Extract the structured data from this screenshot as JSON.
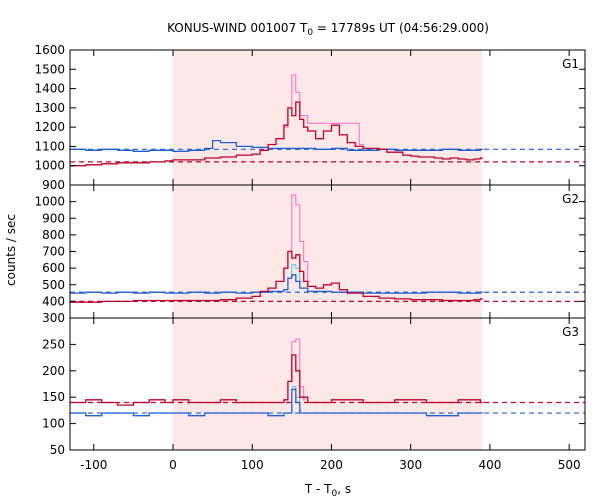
{
  "chart_data": {
    "type": "line",
    "title": "KONUS-WIND 001007 T",
    "title_sub": "0",
    "title_rest": " = 17789s UT (04:56:29.000)",
    "xlabel": "T - T",
    "xlabel_sub": "0",
    "xlabel_rest": ", s",
    "ylabel": "counts / sec",
    "xlim": [
      -130,
      520
    ],
    "xticks": [
      -100,
      0,
      100,
      200,
      300,
      400,
      500
    ],
    "xtick_labels": [
      "-100",
      "0",
      "100",
      "200",
      "300",
      "400",
      "500"
    ],
    "shaded_interval": [
      0,
      390
    ],
    "colors": {
      "shade": "#fde8e8",
      "red": "#c0002a",
      "blue": "#1f5fd6",
      "magenta": "#ff66cc",
      "cyan": "#33ccee"
    },
    "panels": [
      {
        "name": "G1",
        "ylim": [
          900,
          1600
        ],
        "yticks": [
          900,
          1000,
          1100,
          1200,
          1300,
          1400,
          1500,
          1600
        ],
        "ytick_labels": [
          "900",
          "1000",
          "1100",
          "1200",
          "1300",
          "1400",
          "1500",
          "1600"
        ],
        "red_background": 1020,
        "blue_background": 1085,
        "red": [
          [
            -130,
            1000
          ],
          [
            -110,
            1005
          ],
          [
            -90,
            1010
          ],
          [
            -70,
            1015
          ],
          [
            -50,
            1015
          ],
          [
            -30,
            1020
          ],
          [
            -10,
            1025
          ],
          [
            0,
            1030
          ],
          [
            20,
            1030
          ],
          [
            40,
            1040
          ],
          [
            60,
            1045
          ],
          [
            80,
            1055
          ],
          [
            100,
            1060
          ],
          [
            110,
            1080
          ],
          [
            120,
            1110
          ],
          [
            130,
            1140
          ],
          [
            140,
            1210
          ],
          [
            145,
            1300
          ],
          [
            150,
            1260
          ],
          [
            155,
            1330
          ],
          [
            160,
            1240
          ],
          [
            165,
            1200
          ],
          [
            170,
            1180
          ],
          [
            180,
            1140
          ],
          [
            190,
            1180
          ],
          [
            200,
            1210
          ],
          [
            210,
            1160
          ],
          [
            220,
            1120
          ],
          [
            230,
            1100
          ],
          [
            240,
            1090
          ],
          [
            250,
            1090
          ],
          [
            260,
            1085
          ],
          [
            270,
            1070
          ],
          [
            280,
            1070
          ],
          [
            290,
            1055
          ],
          [
            300,
            1050
          ],
          [
            310,
            1045
          ],
          [
            320,
            1045
          ],
          [
            330,
            1040
          ],
          [
            340,
            1035
          ],
          [
            350,
            1040
          ],
          [
            360,
            1035
          ],
          [
            370,
            1030
          ],
          [
            380,
            1035
          ],
          [
            388,
            1040
          ]
        ],
        "blue": [
          [
            -130,
            1085
          ],
          [
            -110,
            1080
          ],
          [
            -90,
            1085
          ],
          [
            -70,
            1080
          ],
          [
            -50,
            1075
          ],
          [
            -30,
            1080
          ],
          [
            -10,
            1080
          ],
          [
            0,
            1075
          ],
          [
            20,
            1080
          ],
          [
            40,
            1090
          ],
          [
            50,
            1130
          ],
          [
            60,
            1120
          ],
          [
            80,
            1100
          ],
          [
            100,
            1095
          ],
          [
            120,
            1090
          ],
          [
            140,
            1090
          ],
          [
            160,
            1090
          ],
          [
            180,
            1085
          ],
          [
            200,
            1090
          ],
          [
            220,
            1080
          ],
          [
            240,
            1080
          ],
          [
            260,
            1085
          ],
          [
            280,
            1080
          ],
          [
            300,
            1080
          ],
          [
            320,
            1080
          ],
          [
            340,
            1085
          ],
          [
            360,
            1080
          ],
          [
            380,
            1080
          ],
          [
            388,
            1085
          ]
        ],
        "magenta": [
          [
            140,
            1200
          ],
          [
            145,
            1300
          ],
          [
            150,
            1470
          ],
          [
            155,
            1380
          ],
          [
            160,
            1260
          ],
          [
            170,
            1220
          ],
          [
            230,
            1220
          ],
          [
            235,
            1110
          ],
          [
            240,
            1090
          ]
        ]
      },
      {
        "name": "G2",
        "ylim": [
          300,
          1100
        ],
        "yticks": [
          300,
          400,
          500,
          600,
          700,
          800,
          900,
          1000
        ],
        "ytick_labels": [
          "300",
          "400",
          "500",
          "600",
          "700",
          "800",
          "900",
          "1000"
        ],
        "red_background": 400,
        "blue_background": 455,
        "red": [
          [
            -130,
            395
          ],
          [
            -110,
            395
          ],
          [
            -90,
            400
          ],
          [
            -70,
            400
          ],
          [
            -50,
            405
          ],
          [
            -30,
            405
          ],
          [
            -10,
            405
          ],
          [
            0,
            405
          ],
          [
            20,
            405
          ],
          [
            40,
            405
          ],
          [
            60,
            410
          ],
          [
            80,
            420
          ],
          [
            100,
            430
          ],
          [
            110,
            460
          ],
          [
            120,
            480
          ],
          [
            130,
            520
          ],
          [
            140,
            600
          ],
          [
            145,
            700
          ],
          [
            150,
            660
          ],
          [
            155,
            680
          ],
          [
            160,
            580
          ],
          [
            165,
            520
          ],
          [
            170,
            490
          ],
          [
            180,
            480
          ],
          [
            190,
            500
          ],
          [
            200,
            510
          ],
          [
            210,
            470
          ],
          [
            220,
            450
          ],
          [
            240,
            430
          ],
          [
            260,
            420
          ],
          [
            280,
            415
          ],
          [
            300,
            410
          ],
          [
            320,
            410
          ],
          [
            340,
            405
          ],
          [
            360,
            405
          ],
          [
            380,
            410
          ],
          [
            388,
            415
          ]
        ],
        "blue": [
          [
            -130,
            450
          ],
          [
            -110,
            455
          ],
          [
            -90,
            450
          ],
          [
            -70,
            455
          ],
          [
            -50,
            450
          ],
          [
            -30,
            455
          ],
          [
            -10,
            450
          ],
          [
            0,
            450
          ],
          [
            20,
            455
          ],
          [
            40,
            450
          ],
          [
            60,
            455
          ],
          [
            80,
            450
          ],
          [
            100,
            455
          ],
          [
            120,
            460
          ],
          [
            140,
            470
          ],
          [
            145,
            540
          ],
          [
            150,
            560
          ],
          [
            155,
            520
          ],
          [
            160,
            480
          ],
          [
            170,
            460
          ],
          [
            200,
            455
          ],
          [
            240,
            450
          ],
          [
            280,
            450
          ],
          [
            320,
            455
          ],
          [
            360,
            450
          ],
          [
            388,
            455
          ]
        ],
        "magenta": [
          [
            140,
            600
          ],
          [
            145,
            700
          ],
          [
            150,
            1040
          ],
          [
            155,
            980
          ],
          [
            160,
            760
          ],
          [
            165,
            640
          ],
          [
            170,
            520
          ]
        ],
        "cyan": [
          [
            145,
            540
          ],
          [
            150,
            620
          ],
          [
            155,
            600
          ],
          [
            160,
            520
          ]
        ]
      },
      {
        "name": "G3",
        "ylim": [
          50,
          300
        ],
        "yticks": [
          50,
          100,
          150,
          200,
          250
        ],
        "ytick_labels": [
          "50",
          "100",
          "150",
          "200",
          "250"
        ],
        "red_background": 140,
        "blue_background": 120,
        "red": [
          [
            -130,
            140
          ],
          [
            -110,
            145
          ],
          [
            -90,
            140
          ],
          [
            -70,
            135
          ],
          [
            -50,
            140
          ],
          [
            -30,
            145
          ],
          [
            -10,
            140
          ],
          [
            0,
            145
          ],
          [
            20,
            140
          ],
          [
            40,
            140
          ],
          [
            60,
            145
          ],
          [
            80,
            140
          ],
          [
            100,
            140
          ],
          [
            120,
            140
          ],
          [
            140,
            145
          ],
          [
            145,
            180
          ],
          [
            150,
            230
          ],
          [
            155,
            200
          ],
          [
            160,
            150
          ],
          [
            170,
            140
          ],
          [
            200,
            145
          ],
          [
            240,
            140
          ],
          [
            280,
            145
          ],
          [
            320,
            140
          ],
          [
            360,
            145
          ],
          [
            388,
            140
          ]
        ],
        "blue": [
          [
            -130,
            120
          ],
          [
            -110,
            115
          ],
          [
            -90,
            120
          ],
          [
            -70,
            120
          ],
          [
            -50,
            115
          ],
          [
            -30,
            120
          ],
          [
            -10,
            120
          ],
          [
            0,
            120
          ],
          [
            20,
            115
          ],
          [
            40,
            120
          ],
          [
            60,
            120
          ],
          [
            80,
            120
          ],
          [
            100,
            120
          ],
          [
            120,
            115
          ],
          [
            140,
            120
          ],
          [
            150,
            165
          ],
          [
            155,
            140
          ],
          [
            160,
            120
          ],
          [
            200,
            120
          ],
          [
            240,
            120
          ],
          [
            280,
            120
          ],
          [
            320,
            115
          ],
          [
            360,
            120
          ],
          [
            388,
            120
          ]
        ],
        "magenta": [
          [
            145,
            180
          ],
          [
            150,
            255
          ],
          [
            155,
            260
          ],
          [
            160,
            170
          ],
          [
            165,
            145
          ]
        ],
        "cyan": [
          [
            150,
            170
          ],
          [
            155,
            150
          ],
          [
            160,
            125
          ]
        ]
      }
    ]
  }
}
